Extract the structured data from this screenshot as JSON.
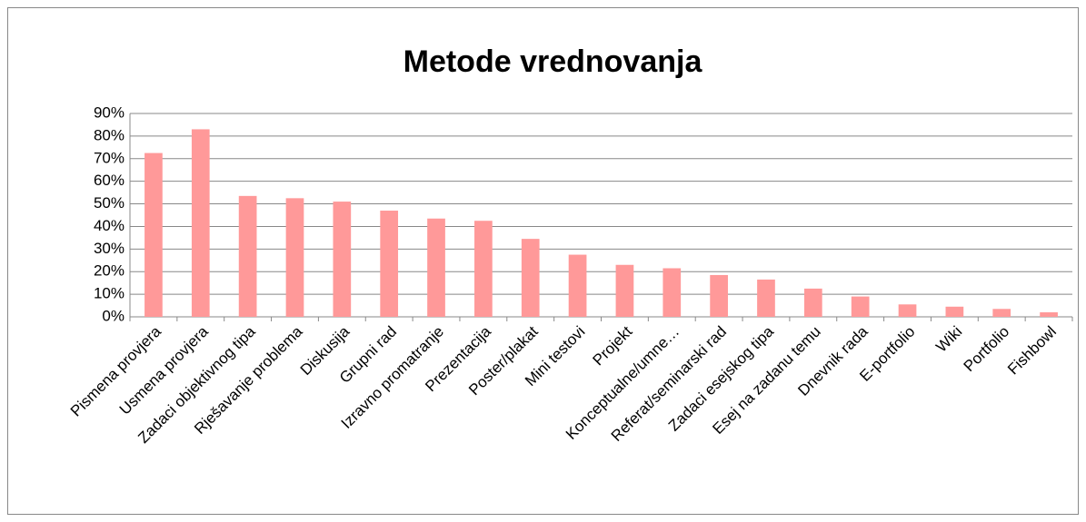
{
  "chart_data": {
    "type": "bar",
    "title": "Metode vrednovanja",
    "categories": [
      "Pismena provjera",
      "Usmena provjera",
      "Zadaci objektivnog tipa",
      "Rješavanje problema",
      "Diskusija",
      "Grupni rad",
      "Izravno promatranje",
      "Prezentacija",
      "Poster/plakat",
      "Mini testovi",
      "Projekt",
      "Konceptualne/umne…",
      "Referat/seminarski rad",
      "Zadaci esejskog tipa",
      "Esej na zadanu temu",
      "Dnevnik rada",
      "E-portfolio",
      "Wiki",
      "Portfolio",
      "Fishbowl"
    ],
    "values": [
      72.5,
      83,
      53.5,
      52.5,
      51,
      47,
      43.5,
      42.5,
      34.5,
      27.5,
      23,
      21.5,
      18.5,
      16.5,
      12.5,
      9,
      5.5,
      4.5,
      3.5,
      2
    ],
    "color": "#ff9999",
    "ylim": [
      0,
      90
    ],
    "yticks": [
      {
        "value": 0,
        "label": "0%"
      },
      {
        "value": 10,
        "label": "10%"
      },
      {
        "value": 20,
        "label": "20%"
      },
      {
        "value": 30,
        "label": "30%"
      },
      {
        "value": 40,
        "label": "40%"
      },
      {
        "value": 50,
        "label": "50%"
      },
      {
        "value": 60,
        "label": "60%"
      },
      {
        "value": 70,
        "label": "70%"
      },
      {
        "value": 80,
        "label": "80%"
      },
      {
        "value": 90,
        "label": "90%"
      }
    ],
    "grid": true
  }
}
